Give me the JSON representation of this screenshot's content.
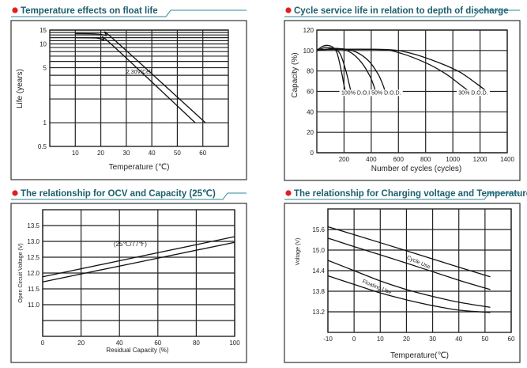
{
  "colors": {
    "bullet": "#e02020",
    "title": "#1d5e6c",
    "rule": "#2a8a9a",
    "line": "#111111",
    "grid": "#222222"
  },
  "chart_data": [
    {
      "type": "line",
      "title": "Temperature effects on float life",
      "xlabel": "Temperature (℃)",
      "ylabel": "Life (years)",
      "xlim": [
        0,
        70
      ],
      "ylim": [
        0.5,
        15
      ],
      "yscale": "log",
      "xticks": [
        10,
        20,
        30,
        40,
        50,
        60
      ],
      "yticks": [
        15,
        10,
        5,
        1,
        0.5
      ],
      "ygrid": [
        15,
        14,
        13,
        12,
        11,
        10,
        9,
        8,
        7,
        6,
        5,
        4,
        3,
        2,
        1
      ],
      "grid": true,
      "annotations": [
        {
          "text": "2.30V/Cell",
          "x": 30,
          "y": 4.2
        }
      ],
      "series": [
        {
          "name": "upper",
          "x": [
            10,
            18,
            22,
            25,
            61
          ],
          "y": [
            13.5,
            13.4,
            12.8,
            11.5,
            1
          ]
        },
        {
          "name": "lower",
          "x": [
            10,
            18,
            21,
            24,
            57
          ],
          "y": [
            12,
            11.9,
            11.3,
            10,
            1
          ]
        }
      ]
    },
    {
      "type": "line",
      "title": "Cycle service life in relation to depth of discharge",
      "xlabel": "Number of cycles (cycles)",
      "ylabel": "Capacity  (%)",
      "xlim": [
        0,
        1400
      ],
      "ylim": [
        0,
        120
      ],
      "xticks": [
        200,
        400,
        600,
        800,
        1000,
        1200,
        1400
      ],
      "yticks": [
        0,
        20,
        40,
        60,
        80,
        100,
        120
      ],
      "grid": true,
      "annotations": [
        {
          "text": "100% D.O.D.",
          "x": 300,
          "y": 57
        },
        {
          "text": "50% D.O.D.",
          "x": 510,
          "y": 57
        },
        {
          "text": "30% D.O.D.",
          "x": 1150,
          "y": 57
        }
      ],
      "series": [
        {
          "name": "100% D.O.D. a",
          "x": [
            0,
            40,
            80,
            120,
            150,
            180,
            200,
            210
          ],
          "y": [
            100,
            104,
            105,
            103,
            97,
            80,
            66,
            60
          ]
        },
        {
          "name": "100% D.O.D. b",
          "x": [
            0,
            60,
            120,
            170,
            210,
            240,
            250
          ],
          "y": [
            100,
            103,
            102,
            97,
            82,
            66,
            60
          ]
        },
        {
          "name": "50% D.O.D. a",
          "x": [
            0,
            150,
            250,
            330,
            390,
            420,
            430
          ],
          "y": [
            100,
            102,
            98,
            88,
            75,
            65,
            60
          ]
        },
        {
          "name": "50% D.O.D. b",
          "x": [
            0,
            150,
            280,
            380,
            450,
            490,
            500
          ],
          "y": [
            100,
            102,
            99,
            90,
            77,
            65,
            60
          ]
        },
        {
          "name": "30% D.O.D. a",
          "x": [
            0,
            450,
            600,
            800,
            950,
            1060,
            1120
          ],
          "y": [
            101,
            101,
            98,
            88,
            77,
            66,
            60
          ]
        },
        {
          "name": "30% D.O.D. b",
          "x": [
            0,
            500,
            700,
            900,
            1050,
            1180,
            1250
          ],
          "y": [
            101,
            101,
            97,
            88,
            79,
            67,
            60
          ]
        }
      ]
    },
    {
      "type": "line",
      "title": "The relationship  for OCV and Capacity (25℃)",
      "xlabel": "Residual Capacity (%)",
      "ylabel": "Open Circuit Voltage (V)",
      "xlim": [
        0,
        100
      ],
      "ylim": [
        10.0,
        14.0
      ],
      "xticks": [
        0,
        20,
        40,
        60,
        80,
        100
      ],
      "yticks": [
        13.5,
        13.0,
        12.5,
        12.0,
        11.5,
        11.0
      ],
      "ygrid": [
        13.5,
        13.0,
        12.5,
        12.0,
        11.5,
        11.0,
        10.5
      ],
      "grid": true,
      "annotations": [
        {
          "text": "(25℃/77℉)",
          "x": 37,
          "y": 12.85
        }
      ],
      "series": [
        {
          "name": "upper",
          "x": [
            0,
            100
          ],
          "y": [
            11.88,
            13.15
          ]
        },
        {
          "name": "lower",
          "x": [
            0,
            100
          ],
          "y": [
            11.72,
            12.97
          ]
        }
      ]
    },
    {
      "type": "line",
      "title": "The relationship for Charging voltage and Temperature",
      "xlabel": "Temperature(℃)",
      "ylabel": "Voltage (V)",
      "xlim": [
        -10,
        60
      ],
      "ylim": [
        12.6,
        16.2
      ],
      "xticks": [
        -10,
        0,
        10,
        20,
        30,
        40,
        50,
        60
      ],
      "yticks": [
        15.6,
        15.0,
        14.4,
        13.8,
        13.2
      ],
      "ygrid": [
        15.6,
        15.0,
        14.4,
        13.8,
        13.2
      ],
      "grid": true,
      "annotations": [
        {
          "text": "Cycle Use",
          "x": 20,
          "y": 14.75,
          "angle": 24
        },
        {
          "text": "Floating Use",
          "x": 3,
          "y": 14.05,
          "angle": 22
        }
      ],
      "series": [
        {
          "name": "Cycle Use upper",
          "x": [
            -10,
            0,
            20,
            40,
            52
          ],
          "y": [
            15.68,
            15.45,
            14.98,
            14.5,
            14.22
          ]
        },
        {
          "name": "Cycle Use lower",
          "x": [
            -10,
            0,
            20,
            40,
            52
          ],
          "y": [
            15.35,
            15.1,
            14.62,
            14.12,
            13.85
          ]
        },
        {
          "name": "Floating Use upper",
          "x": [
            -10,
            0,
            10,
            20,
            30,
            40,
            52
          ],
          "y": [
            14.7,
            14.4,
            14.1,
            13.85,
            13.65,
            13.48,
            13.33
          ]
        },
        {
          "name": "Floating Use lower",
          "x": [
            -10,
            0,
            10,
            20,
            30,
            40,
            52
          ],
          "y": [
            14.25,
            14.0,
            13.75,
            13.55,
            13.38,
            13.25,
            13.18
          ]
        }
      ]
    }
  ]
}
